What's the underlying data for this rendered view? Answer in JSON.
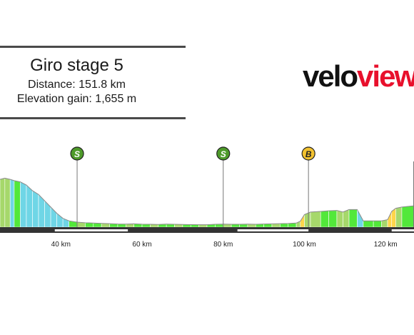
{
  "info": {
    "title": "Giro stage 5",
    "distance": "Distance: 151.8 km",
    "elevation": "Elevation gain: 1,655 m"
  },
  "logo": {
    "part1": "velo",
    "part2": "view"
  },
  "colors": {
    "flat": "#52e83a",
    "climb": "#a6d86b",
    "steep": "#ffd54a",
    "descent": "#6fd6e6",
    "road": "#333333",
    "sprint_marker": "#4e9a2a",
    "bonus_marker": "#f2c230"
  },
  "chart_data": {
    "type": "area",
    "x_unit": "km",
    "xlim": [
      25,
      127
    ],
    "x_ticks": [
      {
        "km": 40,
        "label": "40 km"
      },
      {
        "km": 60,
        "label": "60 km"
      },
      {
        "km": 80,
        "label": "80 km"
      },
      {
        "km": 100,
        "label": "100 km"
      },
      {
        "km": 120,
        "label": "120 km"
      }
    ],
    "profile_rel": [
      [
        25,
        0.24
      ],
      [
        26.2,
        0.22
      ],
      [
        27.5,
        0.24
      ],
      [
        28.5,
        0.26
      ],
      [
        30,
        0.28
      ],
      [
        31.5,
        0.33
      ],
      [
        33,
        0.42
      ],
      [
        34.5,
        0.48
      ],
      [
        36,
        0.58
      ],
      [
        37.5,
        0.68
      ],
      [
        39,
        0.78
      ],
      [
        40.5,
        0.86
      ],
      [
        42,
        0.9
      ],
      [
        44,
        0.92
      ],
      [
        46,
        0.93
      ],
      [
        48,
        0.935
      ],
      [
        50,
        0.94
      ],
      [
        52,
        0.945
      ],
      [
        54,
        0.95
      ],
      [
        56,
        0.952
      ],
      [
        58,
        0.948
      ],
      [
        60,
        0.953
      ],
      [
        62,
        0.955
      ],
      [
        64,
        0.958
      ],
      [
        66,
        0.952
      ],
      [
        68,
        0.955
      ],
      [
        70,
        0.957
      ],
      [
        72,
        0.96
      ],
      [
        74,
        0.962
      ],
      [
        76,
        0.962
      ],
      [
        78,
        0.955
      ],
      [
        80,
        0.952
      ],
      [
        82,
        0.955
      ],
      [
        84,
        0.955
      ],
      [
        86,
        0.952
      ],
      [
        88,
        0.955
      ],
      [
        90,
        0.95
      ],
      [
        92,
        0.948
      ],
      [
        94,
        0.945
      ],
      [
        96,
        0.942
      ],
      [
        98,
        0.935
      ],
      [
        99,
        0.905
      ],
      [
        100,
        0.8
      ],
      [
        101.5,
        0.76
      ],
      [
        104,
        0.75
      ],
      [
        106,
        0.74
      ],
      [
        108,
        0.735
      ],
      [
        109.5,
        0.76
      ],
      [
        111,
        0.72
      ],
      [
        113,
        0.72
      ],
      [
        114.5,
        0.9
      ],
      [
        117,
        0.9
      ],
      [
        119,
        0.9
      ],
      [
        120.5,
        0.88
      ],
      [
        121.5,
        0.75
      ],
      [
        122.5,
        0.7
      ],
      [
        124,
        0.68
      ],
      [
        127,
        0.66
      ]
    ],
    "markers": [
      {
        "km": 44,
        "label": "S",
        "kind": "sprint"
      },
      {
        "km": 80,
        "label": "S",
        "kind": "sprint"
      },
      {
        "km": 101,
        "label": "B",
        "kind": "bonus"
      },
      {
        "km": 127,
        "label": "",
        "kind": "cutoff"
      }
    ],
    "white_bars": [
      [
        38.5,
        56.5
      ],
      [
        83.5,
        101
      ],
      [
        121.5,
        127
      ]
    ]
  }
}
